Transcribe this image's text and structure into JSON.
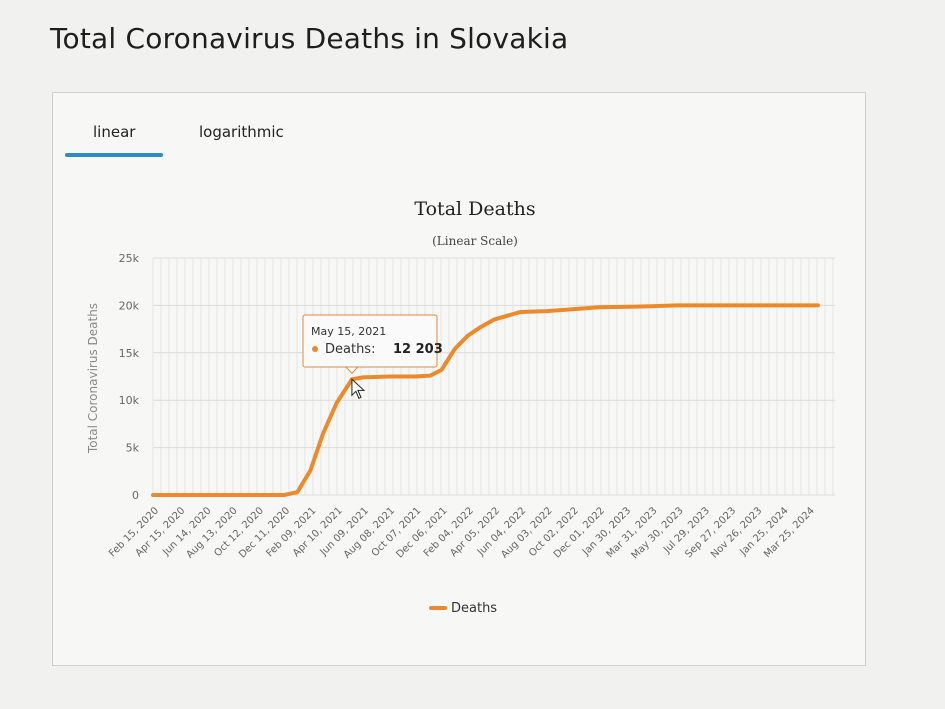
{
  "page_title": "Total Coronavirus Deaths in Slovakia",
  "tabs": [
    {
      "label": "linear",
      "active": true
    },
    {
      "label": "logarithmic",
      "active": false
    }
  ],
  "accent_color": "#2e8cc4",
  "series_color": "#ec8a2b",
  "chart_data": {
    "type": "line",
    "title": "Total Deaths",
    "subtitle": "(Linear Scale)",
    "ylabel": "Total Coronavirus Deaths",
    "ylim": [
      0,
      25000
    ],
    "yticks": [
      0,
      5000,
      10000,
      15000,
      20000,
      25000
    ],
    "ytick_labels": [
      "0",
      "5k",
      "10k",
      "15k",
      "20k",
      "25k"
    ],
    "x_tick_labels": [
      "Feb 15, 2020",
      "Apr 15, 2020",
      "Jun 14, 2020",
      "Aug 13, 2020",
      "Oct 12, 2020",
      "Dec 11, 2020",
      "Feb 09, 2021",
      "Apr 10, 2021",
      "Jun 09, 2021",
      "Aug 08, 2021",
      "Oct 07, 2021",
      "Dec 06, 2021",
      "Feb 04, 2022",
      "Apr 05, 2022",
      "Jun 04, 2022",
      "Aug 03, 2022",
      "Oct 02, 2022",
      "Dec 01, 2022",
      "Jan 30, 2023",
      "Mar 31, 2023",
      "May 30, 2023",
      "Jul 29, 2023",
      "Sep 27, 2023",
      "Nov 26, 2023",
      "Jan 25, 2024",
      "Mar 25, 2024"
    ],
    "legend": "bottom-center",
    "series": [
      {
        "name": "Deaths",
        "x": [
          "2020-02-15",
          "2020-08-13",
          "2020-10-12",
          "2020-11-15",
          "2020-12-11",
          "2021-01-10",
          "2021-02-09",
          "2021-03-10",
          "2021-04-10",
          "2021-05-15",
          "2021-06-09",
          "2021-08-08",
          "2021-10-07",
          "2021-11-10",
          "2021-12-06",
          "2022-01-05",
          "2022-02-04",
          "2022-03-05",
          "2022-04-05",
          "2022-06-04",
          "2022-08-03",
          "2022-10-02",
          "2022-12-01",
          "2023-03-31",
          "2023-05-30",
          "2023-09-27",
          "2024-01-25",
          "2024-04-15"
        ],
        "values": [
          0,
          0,
          0,
          0,
          0,
          300,
          2600,
          6500,
          9700,
          12203,
          12400,
          12500,
          12500,
          12600,
          13200,
          15400,
          16800,
          17700,
          18500,
          19300,
          19400,
          19600,
          19800,
          19900,
          20000,
          20000,
          20000,
          20000
        ]
      }
    ],
    "tooltip": {
      "date": "May 15, 2021",
      "label": "Deaths:",
      "value": "12 203",
      "x": "2021-05-15"
    }
  }
}
